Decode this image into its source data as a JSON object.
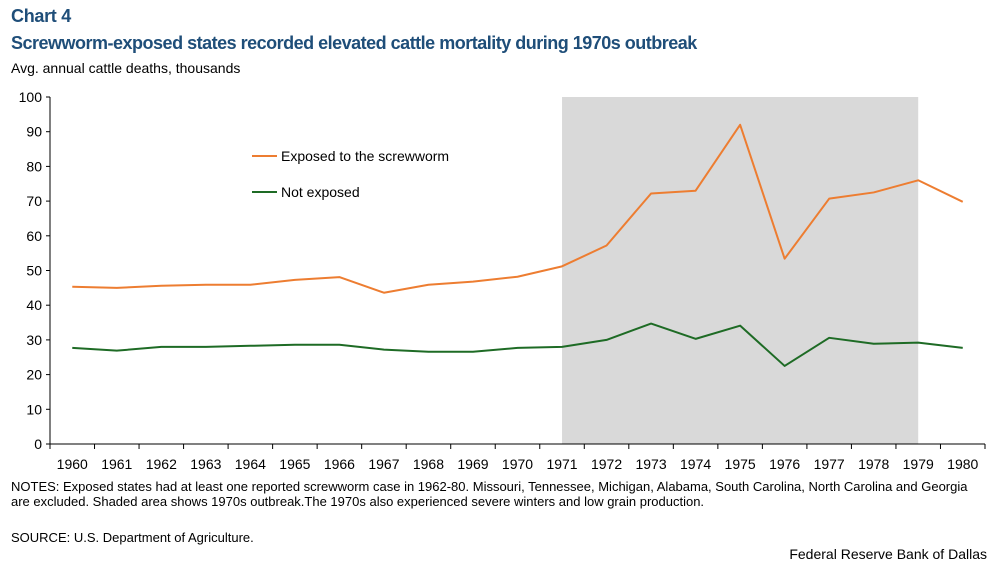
{
  "header": {
    "chart_label": "Chart 4",
    "title": "Screwworm-exposed states recorded elevated cattle mortality during 1970s outbreak",
    "subtitle": "Avg. annual  cattle deaths, thousands"
  },
  "footer": {
    "notes": "NOTES: Exposed states had at least one reported screwworm case in 1962-80. Missouri, Tennessee, Michigan, Alabama, South Carolina, North Carolina and Georgia are excluded. Shaded area shows 1970s outbreak.The 1970s also experienced severe winters and low grain production.",
    "source": "SOURCE: U.S. Department of Agriculture.",
    "credit": "Federal Reserve Bank of Dallas"
  },
  "chart_data": {
    "type": "line",
    "x": [
      "1960",
      "1961",
      "1962",
      "1963",
      "1964",
      "1965",
      "1966",
      "1967",
      "1968",
      "1969",
      "1970",
      "1971",
      "1972",
      "1973",
      "1974",
      "1975",
      "1976",
      "1977",
      "1978",
      "1979",
      "1980"
    ],
    "ylim": [
      0,
      100
    ],
    "yticks": [
      0,
      10,
      20,
      30,
      40,
      50,
      60,
      70,
      80,
      90,
      100
    ],
    "grid": false,
    "legend_position": "inside top-left",
    "shaded_region": {
      "from": "1971",
      "to": "1979",
      "color": "#d9d9d9"
    },
    "series": [
      {
        "name": "Exposed to the screwworm",
        "color": "#ed7d31",
        "values": [
          45.3,
          45.0,
          45.6,
          45.9,
          45.9,
          47.3,
          48.1,
          43.6,
          45.9,
          46.8,
          48.2,
          51.2,
          57.2,
          72.2,
          73.0,
          92.0,
          53.4,
          70.7,
          72.5,
          76.0,
          69.8
        ]
      },
      {
        "name": "Not exposed",
        "color": "#1e6b25",
        "values": [
          27.7,
          26.9,
          28.0,
          28.0,
          28.3,
          28.6,
          28.6,
          27.2,
          26.6,
          26.6,
          27.7,
          28.0,
          30.0,
          34.7,
          30.3,
          34.1,
          22.5,
          30.6,
          28.9,
          29.2,
          27.7
        ]
      }
    ]
  }
}
